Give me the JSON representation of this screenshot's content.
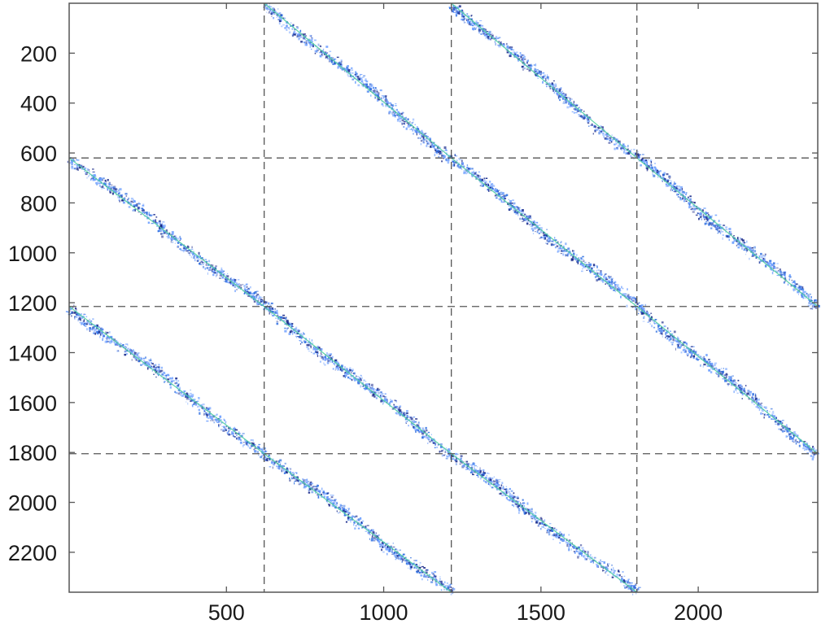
{
  "chart_data": {
    "type": "scatter",
    "title": "",
    "xlabel": "",
    "ylabel": "",
    "xlim": [
      0,
      2380
    ],
    "ylim": [
      2360,
      0
    ],
    "y_axis_inverted": true,
    "grid": "dashed lines at block boundaries",
    "block_boundaries": [
      620,
      1215,
      1805
    ],
    "xticks": [
      500,
      1000,
      1500,
      2000
    ],
    "xtick_labels": [
      "500",
      "1000",
      "1500",
      "2000"
    ],
    "yticks": [
      200,
      400,
      600,
      800,
      1000,
      1200,
      1400,
      1600,
      1800,
      2000,
      2200
    ],
    "ytick_labels": [
      "200",
      "400",
      "600",
      "800",
      "1000",
      "1200",
      "1400",
      "1600",
      "1800",
      "2000",
      "2200"
    ],
    "series": [
      {
        "values": [
          [
            620,
            0
          ],
          [
            1215,
            620
          ]
        ]
      },
      {
        "values": [
          [
            1215,
            0
          ],
          [
            1805,
            620
          ]
        ]
      },
      {
        "values": [
          [
            0,
            620
          ],
          [
            620,
            1215
          ]
        ]
      },
      {
        "values": [
          [
            1215,
            620
          ],
          [
            1805,
            1215
          ]
        ]
      },
      {
        "values": [
          [
            1805,
            620
          ],
          [
            2380,
            1215
          ]
        ]
      },
      {
        "values": [
          [
            620,
            1215
          ],
          [
            1215,
            1805
          ]
        ]
      },
      {
        "values": [
          [
            1805,
            1215
          ],
          [
            2380,
            1805
          ]
        ]
      },
      {
        "values": [
          [
            0,
            1215
          ],
          [
            620,
            1805
          ]
        ]
      },
      {
        "values": [
          [
            620,
            1805
          ],
          [
            1215,
            2360
          ]
        ]
      },
      {
        "values": [
          [
            1215,
            1805
          ],
          [
            1805,
            2360
          ]
        ]
      }
    ],
    "colors": {
      "scatter_light": "#6fa0ff",
      "scatter_mid": "#2f6fe0",
      "scatter_dark": "#1a2a8a",
      "trend_line": "#4fd0a0",
      "axis": "#555555",
      "grid": "#555555"
    }
  }
}
